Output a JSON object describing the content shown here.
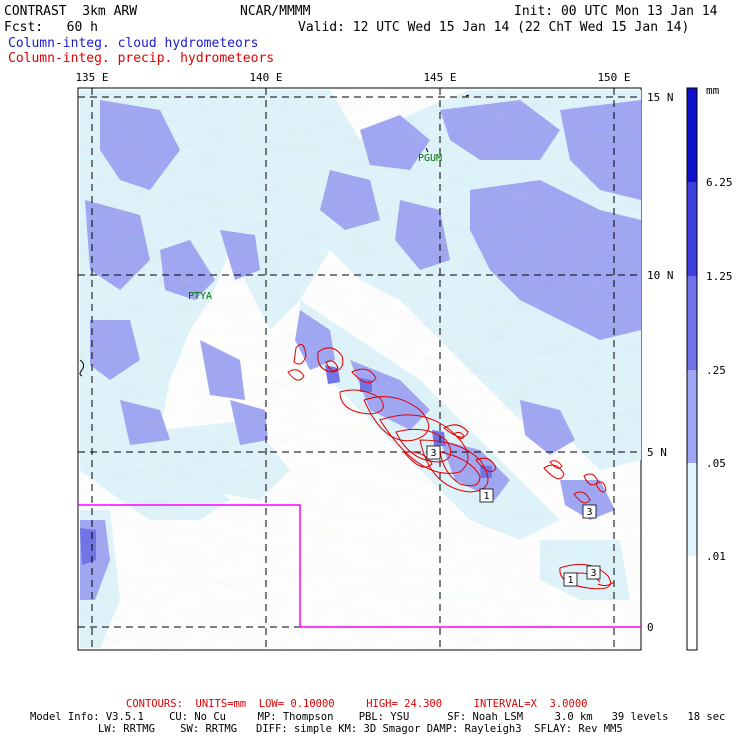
{
  "header": {
    "title": "CONTRAST  3km ARW",
    "org": "NCAR/MMMM",
    "init": "Init: 00 UTC Mon 13 Jan 14",
    "fcst": "Fcst:   60 h",
    "valid": "Valid: 12 UTC Wed 15 Jan 14 (22 ChT Wed 15 Jan 14)",
    "field1": "Column-integ. cloud hydrometeors",
    "field2": "Column-integ. precip. hydrometeors"
  },
  "map": {
    "lon_labels": [
      "135 E",
      "140 E",
      "145 E",
      "150 E"
    ],
    "lat_labels": [
      "15 N",
      "10 N",
      "5 N",
      "0"
    ],
    "places": [
      "PGUM",
      "PTYA"
    ],
    "contour_labels": [
      "3",
      "1",
      "3",
      "1",
      "3"
    ],
    "colors": {
      "fill_lightest": "#dff4fb",
      "fill_light": "#9fa6f3",
      "fill_mid": "#6f72e8",
      "fill_dark": "#3d3de0",
      "fill_darkest": "#1010cc",
      "contour": "#e00000",
      "box": "#ff00ff"
    }
  },
  "colorbar": {
    "unit": "mm",
    "levels": [
      "6.25",
      "1.25",
      ".25",
      ".05",
      ".01"
    ],
    "colors": [
      "#1010cc",
      "#3d3de0",
      "#6f72e8",
      "#9fa6f3",
      "#dff4fb",
      "#ffffff"
    ]
  },
  "footer": {
    "contours": "CONTOURS:  UNITS=mm  LOW= 0.10000     HIGH= 24.300     INTERVAL=X  3.0000",
    "model_line1": "Model Info: V3.5.1    CU: No Cu     MP: Thompson    PBL: YSU      SF: Noah LSM     3.0 km   39 levels   18 sec",
    "model_line2": "LW: RRTMG    SW: RRTMG   DIFF: simple KM: 3D Smagor DAMP: Rayleigh3  SFLAY: Rev MM5"
  }
}
